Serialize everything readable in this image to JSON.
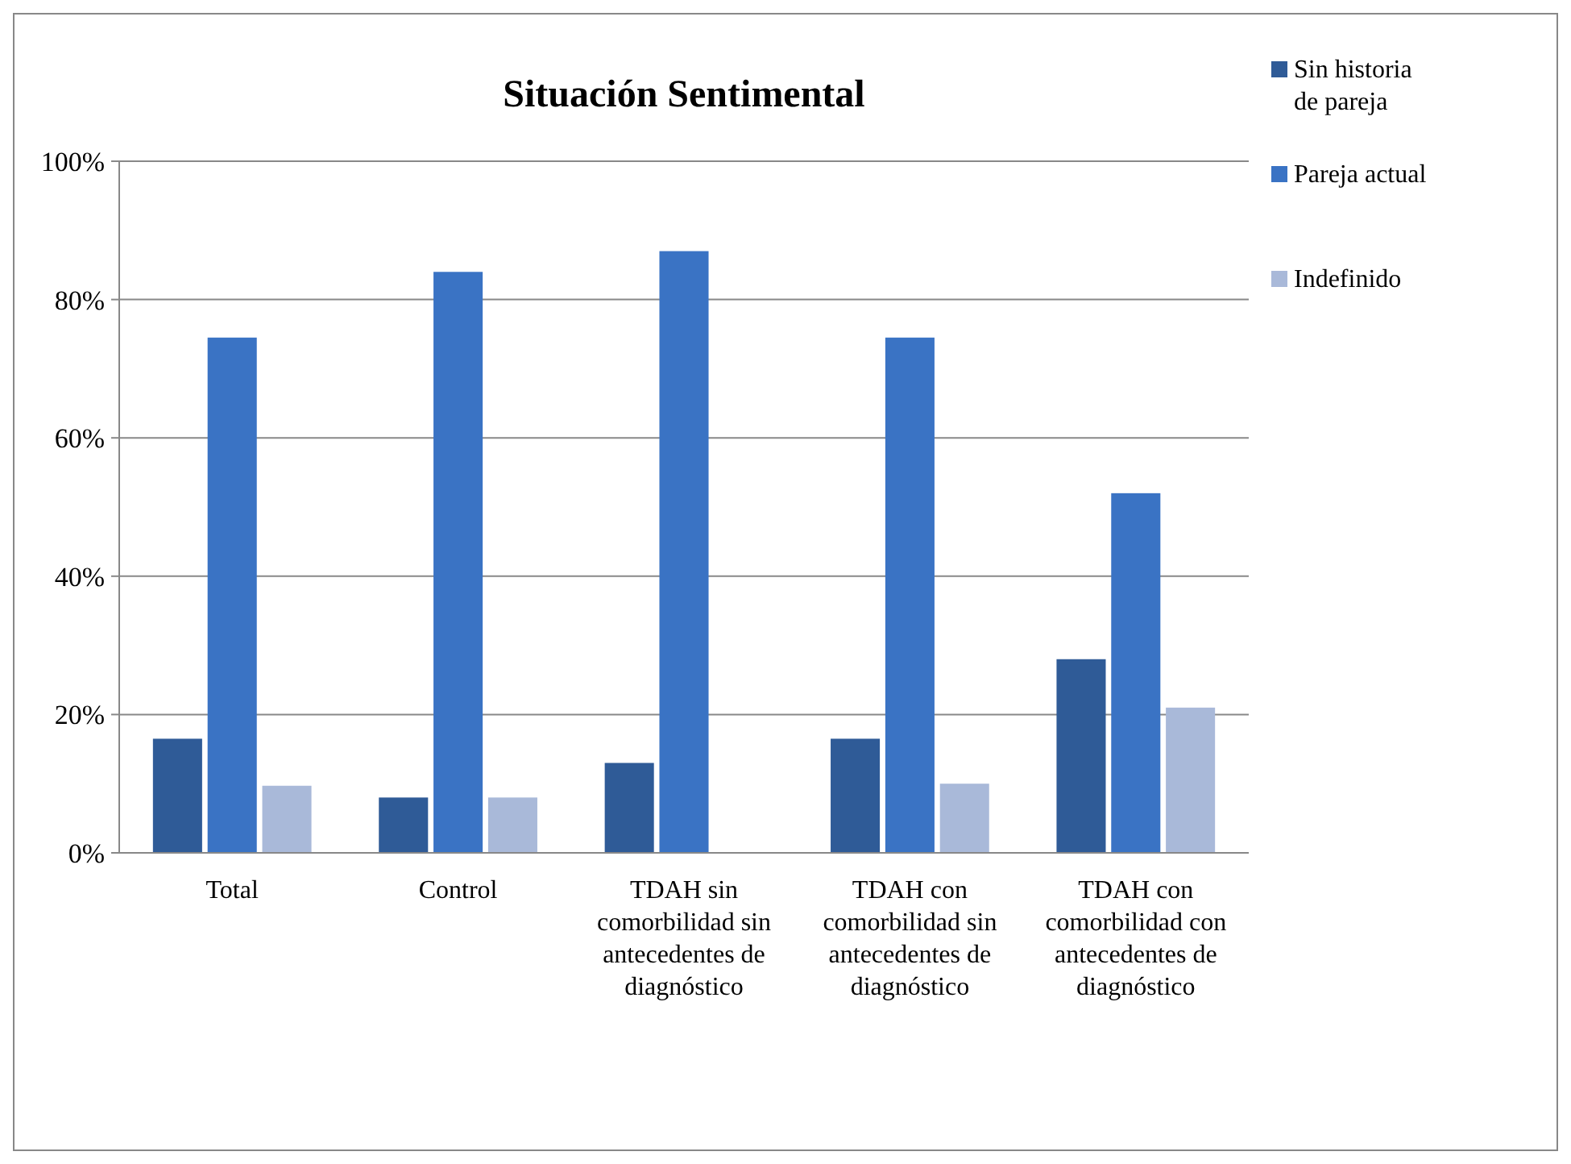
{
  "chart_data": {
    "type": "bar",
    "title": "Situación Sentimental",
    "categories": [
      "Total",
      "Control",
      "TDAH sin comorbilidad sin antecedentes de diagnóstico",
      "TDAH con comorbilidad sin antecedentes de diagnóstico",
      "TDAH con comorbilidad con antecedentes de diagnóstico"
    ],
    "series": [
      {
        "name": "Sin historia de pareja",
        "color": "#2f5b97",
        "values": [
          16.5,
          8,
          13,
          16.5,
          28
        ]
      },
      {
        "name": "Pareja actual",
        "color": "#3a73c4",
        "values": [
          74.5,
          84,
          87,
          74.5,
          52
        ]
      },
      {
        "name": "Indefinido",
        "color": "#a9b9d9",
        "values": [
          9.7,
          8,
          0,
          10,
          21
        ]
      }
    ],
    "ylim": [
      0,
      100
    ],
    "yticks": [
      {
        "value": 0,
        "label": "0%"
      },
      {
        "value": 20,
        "label": "20%"
      },
      {
        "value": 40,
        "label": "40%"
      },
      {
        "value": 60,
        "label": "60%"
      },
      {
        "value": 80,
        "label": "80%"
      },
      {
        "value": 100,
        "label": "100%"
      }
    ],
    "grid": "y",
    "legend": "top right"
  }
}
